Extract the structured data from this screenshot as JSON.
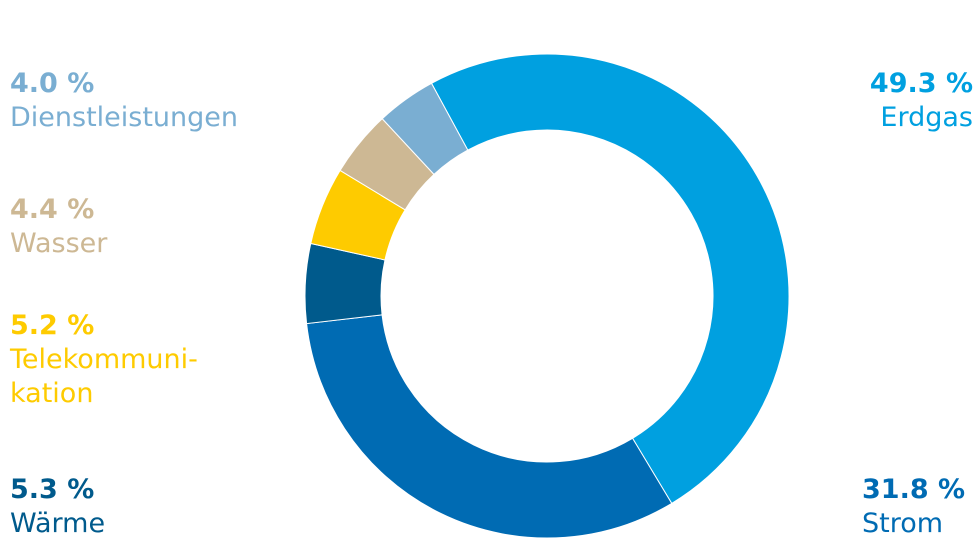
{
  "chart_data": {
    "type": "pie",
    "variant": "donut",
    "slices": [
      {
        "label_lines": [
          "Erdgas"
        ],
        "value": 49.3,
        "value_text": "49.3 %",
        "color": "#00a0e0"
      },
      {
        "label_lines": [
          "Strom"
        ],
        "value": 31.8,
        "value_text": "31.8 %",
        "color": "#006bb3"
      },
      {
        "label_lines": [
          "Wärme"
        ],
        "value": 5.3,
        "value_text": "5.3 %",
        "color": "#005a8c"
      },
      {
        "label_lines": [
          "Telekommuni-",
          "kation"
        ],
        "value": 5.2,
        "value_text": "5.2 %",
        "color": "#fecb00"
      },
      {
        "label_lines": [
          "Wasser"
        ],
        "value": 4.4,
        "value_text": "4.4 %",
        "color": "#cdb894"
      },
      {
        "label_lines": [
          "Dienstleistungen"
        ],
        "value": 4.0,
        "value_text": "4.0 %",
        "color": "#7aaed2"
      }
    ]
  }
}
